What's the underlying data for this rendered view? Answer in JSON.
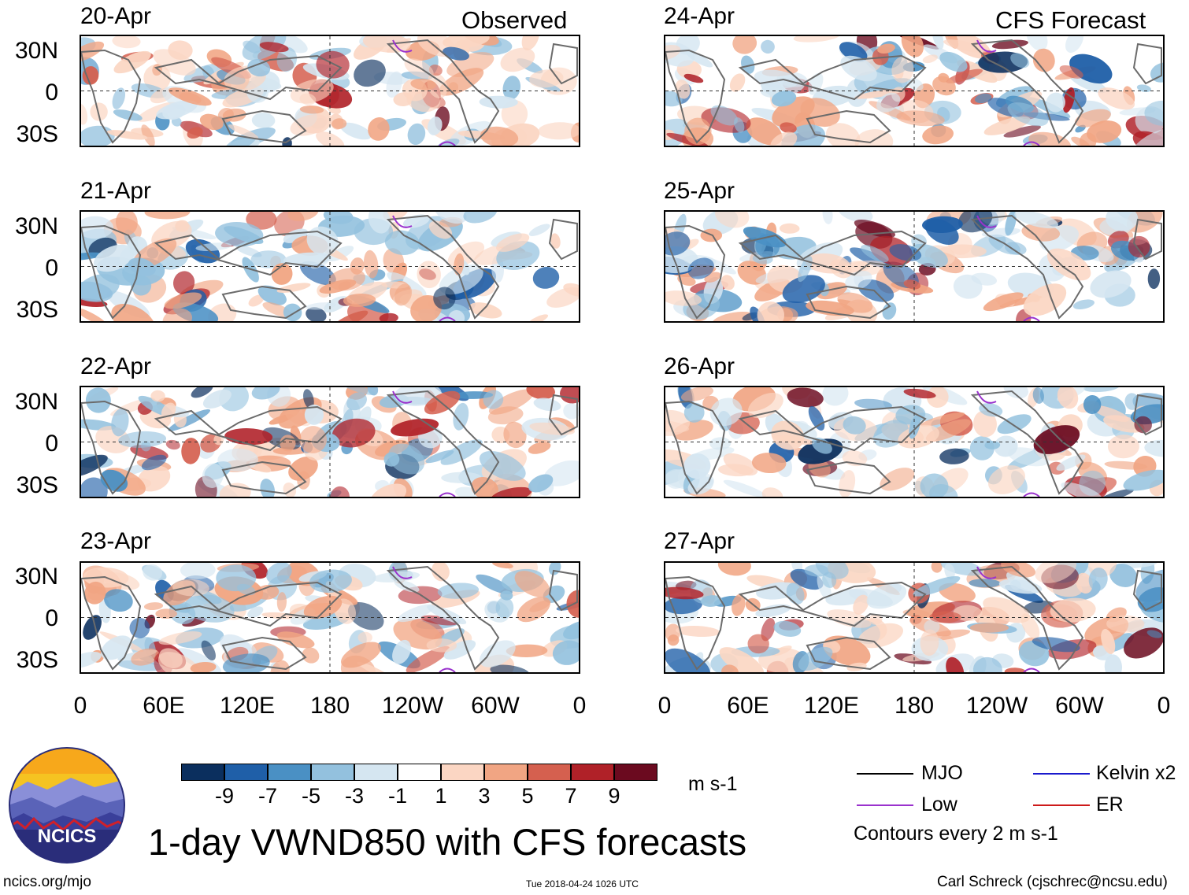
{
  "columns": {
    "left_heading": "Observed",
    "right_heading": "CFS Forecast"
  },
  "panels_left": [
    {
      "date": "20-Apr"
    },
    {
      "date": "21-Apr"
    },
    {
      "date": "22-Apr"
    },
    {
      "date": "23-Apr"
    }
  ],
  "panels_right": [
    {
      "date": "24-Apr"
    },
    {
      "date": "25-Apr"
    },
    {
      "date": "26-Apr"
    },
    {
      "date": "27-Apr"
    }
  ],
  "latitude_labels": [
    "30N",
    "0",
    "30S"
  ],
  "longitude_labels": [
    "0",
    "60E",
    "120E",
    "180",
    "120W",
    "60W",
    "0"
  ],
  "colorbar": {
    "units": "m s-1",
    "colors": [
      "#0b2f5e",
      "#1f5fa8",
      "#4a90c4",
      "#93c1de",
      "#d5e6f1",
      "#ffffff",
      "#fbd6c3",
      "#f1a583",
      "#d5604f",
      "#b02128",
      "#6b0a1f"
    ],
    "ticks": [
      "-9",
      "-7",
      "-5",
      "-3",
      "-1",
      "1",
      "3",
      "5",
      "7",
      "9"
    ]
  },
  "title": "1-day VWND850 with CFS forecasts",
  "logo_text": "NCICS",
  "legend": {
    "items": [
      {
        "label": "MJO",
        "color": "#000000"
      },
      {
        "label": "Low",
        "color": "#9a32cd"
      },
      {
        "label": "Kelvin x2",
        "color": "#1a1acd"
      },
      {
        "label": "ER",
        "color": "#cd1a1a"
      }
    ],
    "contours_note": "Contours every 2 m s-1"
  },
  "footer": {
    "website": "ncics.org/mjo",
    "timestamp": "Tue 2018-04-24 1026 UTC",
    "author": "Carl Schreck (cjschrec@ncsu.edu)"
  }
}
